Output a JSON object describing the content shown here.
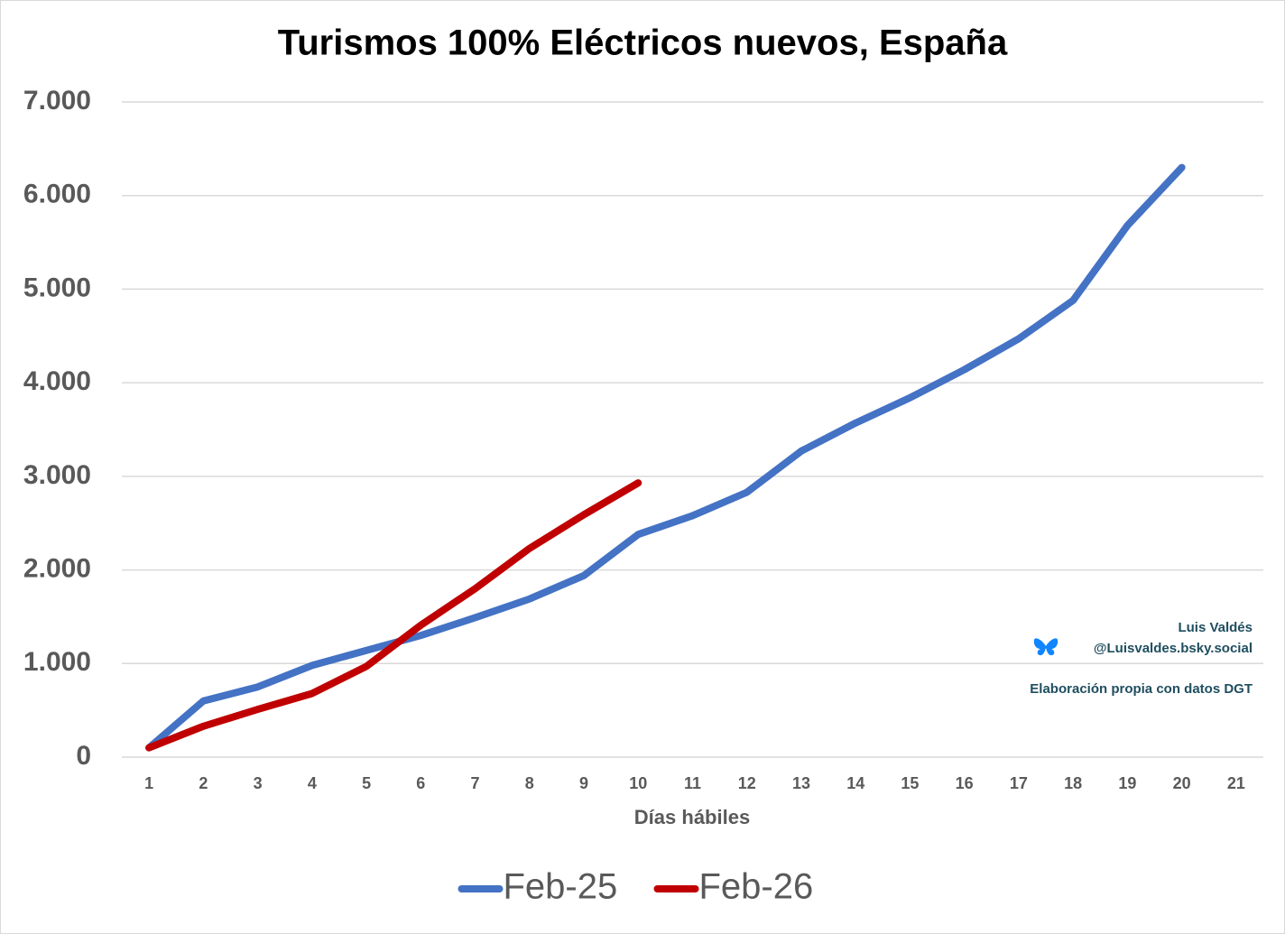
{
  "chart_data": {
    "type": "line",
    "title": "Turismos 100% Eléctricos nuevos, España",
    "x_label": "Días hábiles",
    "categories": [
      "1",
      "2",
      "3",
      "4",
      "5",
      "6",
      "7",
      "8",
      "9",
      "10",
      "11",
      "12",
      "13",
      "14",
      "15",
      "16",
      "17",
      "18",
      "19",
      "20",
      "21"
    ],
    "series": [
      {
        "name": "Feb-25",
        "color": "#4472c4",
        "values": [
          100,
          600,
          750,
          980,
          1140,
          1300,
          1490,
          1690,
          1940,
          2380,
          2580,
          2830,
          3270,
          3570,
          3840,
          4140,
          4470,
          4880,
          5680,
          6300,
          null
        ]
      },
      {
        "name": "Feb-26",
        "color": "#c00000",
        "values": [
          100,
          330,
          510,
          680,
          970,
          1410,
          1800,
          2230,
          2590,
          2930,
          null,
          null,
          null,
          null,
          null,
          null,
          null,
          null,
          null,
          null,
          null
        ]
      }
    ],
    "ylim": [
      0,
      7000
    ],
    "yticks": [
      0,
      {
        "value": 1000,
        "label": "1.000"
      },
      {
        "value": 2000,
        "label": "2.000"
      },
      {
        "value": 3000,
        "label": "3.000"
      },
      {
        "value": 4000,
        "label": "4.000"
      },
      {
        "value": 5000,
        "label": "5.000"
      },
      {
        "value": 6000,
        "label": "6.000"
      },
      {
        "value": 7000,
        "label": "7.000"
      }
    ],
    "grid": true,
    "legend": "bottom",
    "annotations": [
      "Luis Valdés",
      "@Luisvaldes.bsky.social",
      "Elaboración propia con datos DGT"
    ]
  }
}
